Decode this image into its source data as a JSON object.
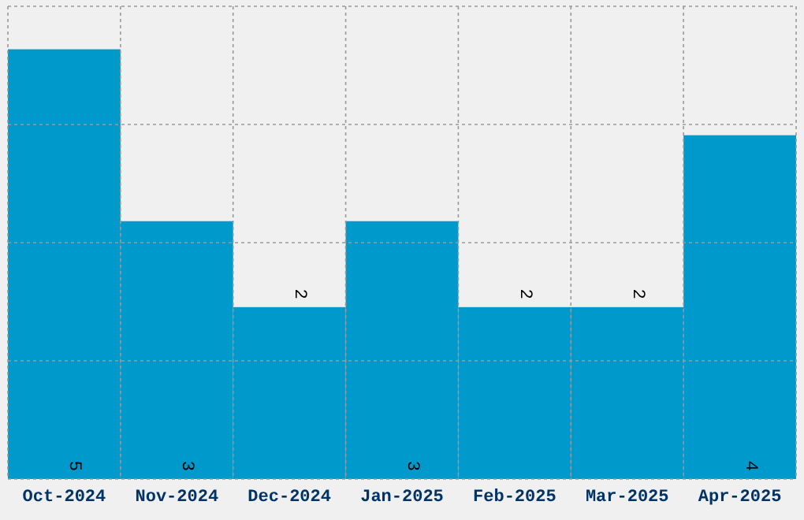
{
  "chart_data": {
    "type": "bar",
    "categories": [
      "Oct-2024",
      "Nov-2024",
      "Dec-2024",
      "Jan-2025",
      "Feb-2025",
      "Mar-2025",
      "Apr-2025"
    ],
    "values": [
      5,
      3,
      2,
      3,
      2,
      2,
      4
    ],
    "color": "#0099cc",
    "data_labels": true,
    "grid": true,
    "tick_labels": "x",
    "ylim": [
      0,
      5.5
    ],
    "yticks": [
      {
        "value": 0,
        "label": null
      },
      {
        "value": 1.375,
        "label": null
      },
      {
        "value": 2.75,
        "label": null
      },
      {
        "value": 4.125,
        "label": null
      },
      {
        "value": 5.5,
        "label": null
      }
    ]
  }
}
